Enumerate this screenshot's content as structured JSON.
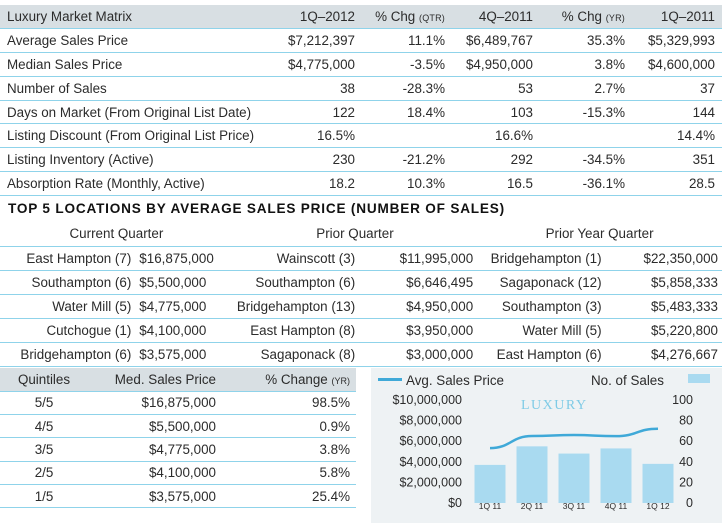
{
  "matrix": {
    "headers": [
      "Luxury Market Matrix",
      "1Q–2012",
      "% Chg",
      "(QTR)",
      "4Q–2011",
      "% Chg",
      "(YR)",
      "1Q–2011"
    ],
    "rows": [
      [
        "Average Sales Price",
        "$7,212,397",
        "11.1%",
        "$6,489,767",
        "35.3%",
        "$5,329,993"
      ],
      [
        "Median Sales Price",
        "$4,775,000",
        "-3.5%",
        "$4,950,000",
        "3.8%",
        "$4,600,000"
      ],
      [
        "Number of Sales",
        "38",
        "-28.3%",
        "53",
        "2.7%",
        "37"
      ],
      [
        "Days on Market (From Original List Date)",
        "122",
        "18.4%",
        "103",
        "-15.3%",
        "144"
      ],
      [
        "Listing Discount (From Original List Price)",
        "16.5%",
        "",
        "16.6%",
        "",
        "14.4%"
      ],
      [
        "Listing Inventory (Active)",
        "230",
        "-21.2%",
        "292",
        "-34.5%",
        "351"
      ],
      [
        "Absorption Rate (Monthly, Active)",
        "18.2",
        "10.3%",
        "16.5",
        "-36.1%",
        "28.5"
      ]
    ]
  },
  "locations": {
    "title": "TOP 5 LOCATIONS BY AVERAGE SALES PRICE (NUMBER OF SALES)",
    "column_headers": [
      "Current Quarter",
      "Prior Quarter",
      "Prior Year Quarter"
    ],
    "rows": [
      [
        "East Hampton (7)",
        "$16,875,000",
        "Wainscott (3)",
        "$11,995,000",
        "Bridgehampton (1)",
        "$22,350,000"
      ],
      [
        "Southampton (6)",
        "$5,500,000",
        "Southampton (6)",
        "$6,646,495",
        "Sagaponack (12)",
        "$5,858,333"
      ],
      [
        "Water Mill (5)",
        "$4,775,000",
        "Bridgehampton (13)",
        "$4,950,000",
        "Southampton (3)",
        "$5,483,333"
      ],
      [
        "Cutchogue (1)",
        "$4,100,000",
        "East Hampton (8)",
        "$3,950,000",
        "Water Mill (5)",
        "$5,220,800"
      ],
      [
        "Bridgehampton (6)",
        "$3,575,000",
        "Sagaponack (8)",
        "$3,000,000",
        "East Hampton (6)",
        "$4,276,667"
      ]
    ]
  },
  "quintiles": {
    "headers": [
      "Quintiles",
      "Med. Sales Price",
      "% Change",
      "(YR)"
    ],
    "rows": [
      [
        "5/5",
        "$16,875,000",
        "98.5%"
      ],
      [
        "4/5",
        "$5,500,000",
        "0.9%"
      ],
      [
        "3/5",
        "$4,775,000",
        "3.8%"
      ],
      [
        "2/5",
        "$4,100,000",
        "5.8%"
      ],
      [
        "1/5",
        "$3,575,000",
        "25.4%"
      ]
    ]
  },
  "chart_data": {
    "type": "bar",
    "title": "LUXURY",
    "categories": [
      "1Q 11",
      "2Q 11",
      "3Q 11",
      "4Q 11",
      "1Q 12"
    ],
    "series": [
      {
        "name": "Avg. Sales Price",
        "type": "line",
        "axis": "left",
        "values": [
          5329993,
          6500000,
          6600000,
          6489767,
          7212397
        ],
        "color": "#3fa9d8"
      },
      {
        "name": "No. of Sales",
        "type": "bar",
        "axis": "right",
        "values": [
          37,
          55,
          48,
          53,
          38
        ],
        "color": "#a9daf0"
      }
    ],
    "y_left": {
      "range": [
        0,
        10000000
      ],
      "ticks": [
        "$0",
        "$2,000,000",
        "$4,000,000",
        "$6,000,000",
        "$8,000,000",
        "$10,000,000"
      ]
    },
    "y_right": {
      "range": [
        0,
        100
      ],
      "ticks": [
        "0",
        "20",
        "40",
        "60",
        "80",
        "100"
      ]
    },
    "grid": false,
    "legend": "top"
  },
  "colors": {
    "header_bg": "#d8dfe3",
    "rule": "#8fd3ea",
    "line": "#3fa9d8",
    "bar": "#a9daf0",
    "chart_bg": "#eef2f4"
  }
}
